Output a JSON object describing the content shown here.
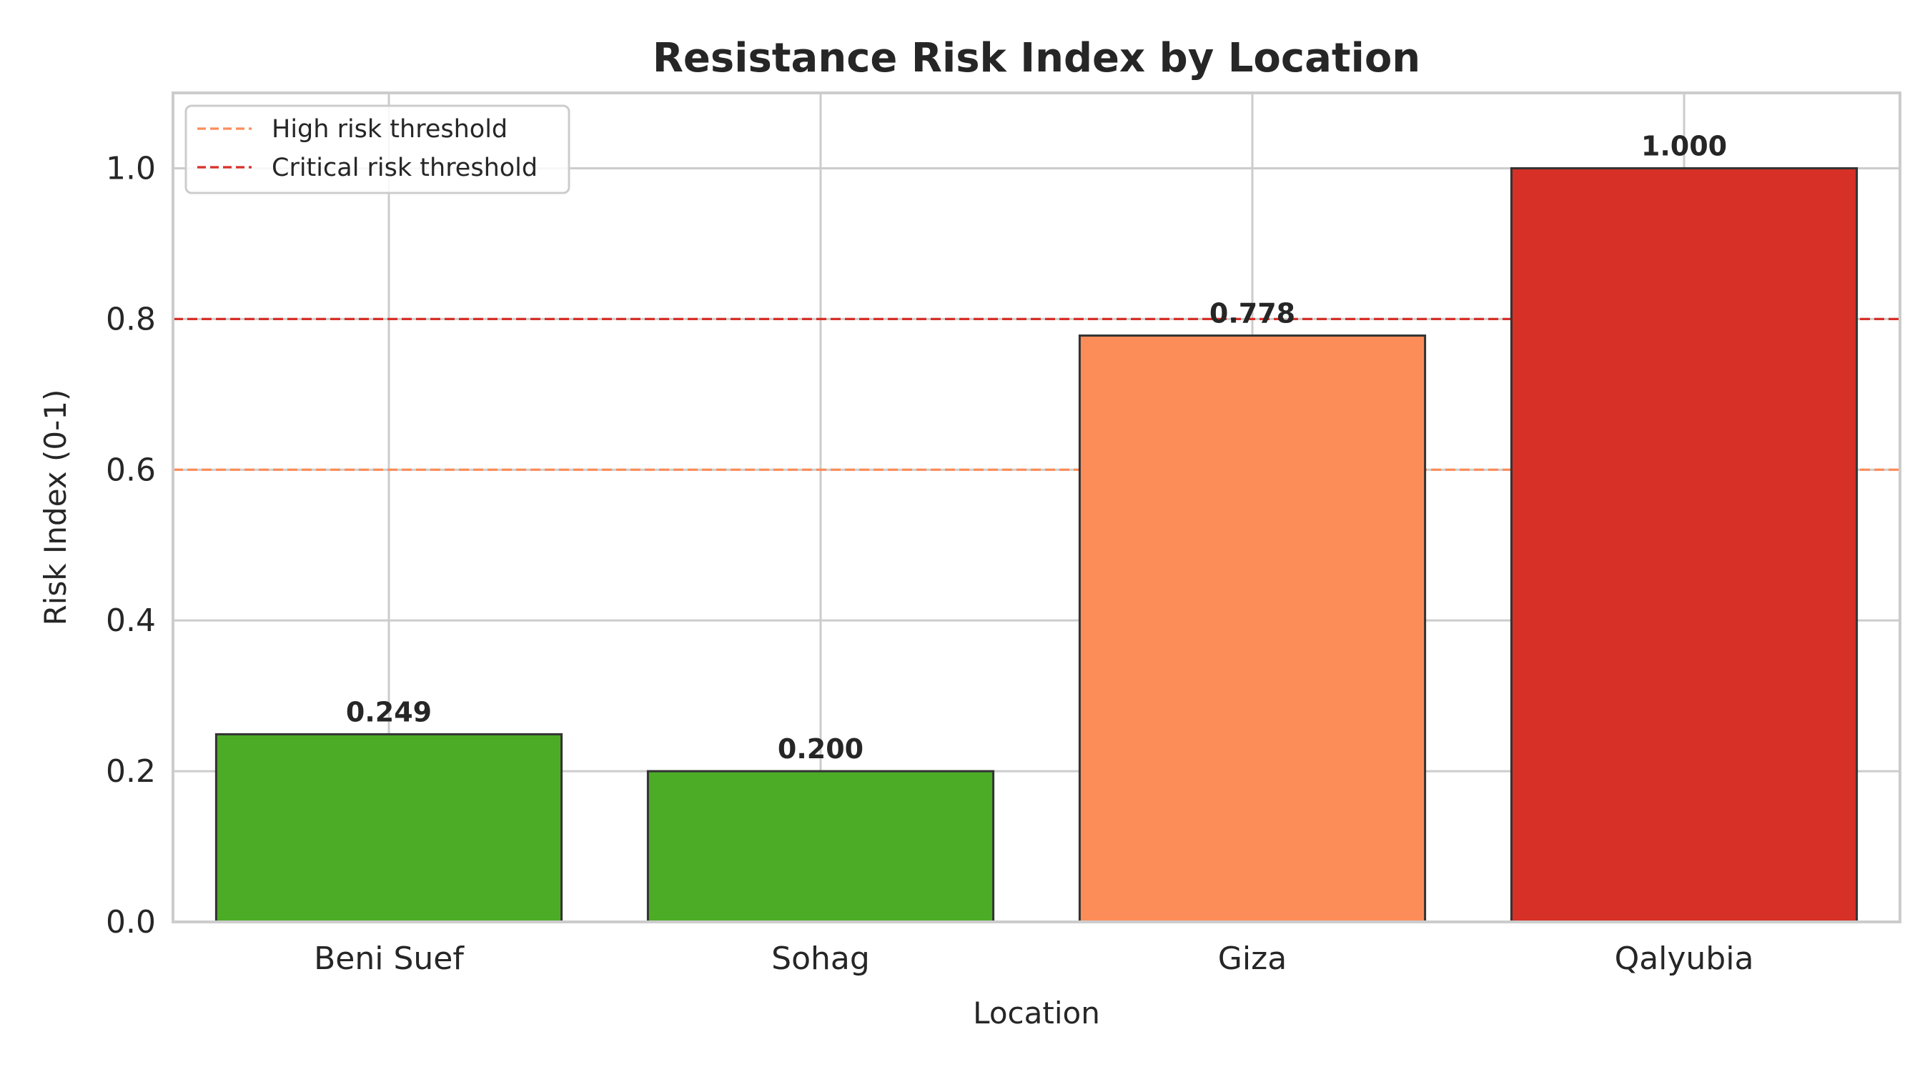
{
  "chart_data": {
    "type": "bar",
    "title": "Resistance Risk Index by Location",
    "xlabel": "Location",
    "ylabel": "Risk Index (0-1)",
    "categories": [
      "Beni Suef",
      "Sohag",
      "Giza",
      "Qalyubia"
    ],
    "values": [
      0.249,
      0.2,
      0.778,
      1.0
    ],
    "value_labels": [
      "0.249",
      "0.200",
      "0.778",
      "1.000"
    ],
    "bar_colors": [
      "#4dac26",
      "#4dac26",
      "#fc8d59",
      "#d73027"
    ],
    "ylim": [
      0,
      1.1
    ],
    "yticks": [
      0.0,
      0.2,
      0.4,
      0.6,
      0.8,
      1.0
    ],
    "ytick_labels": [
      "0.0",
      "0.2",
      "0.4",
      "0.6",
      "0.8",
      "1.0"
    ],
    "grid": true,
    "reference_lines": [
      {
        "name": "High risk threshold",
        "y": 0.6,
        "color": "#fc8d59",
        "style": "dashed"
      },
      {
        "name": "Critical risk threshold",
        "y": 0.8,
        "color": "#d73027",
        "style": "dashed"
      }
    ],
    "legend_position": "top-left"
  }
}
